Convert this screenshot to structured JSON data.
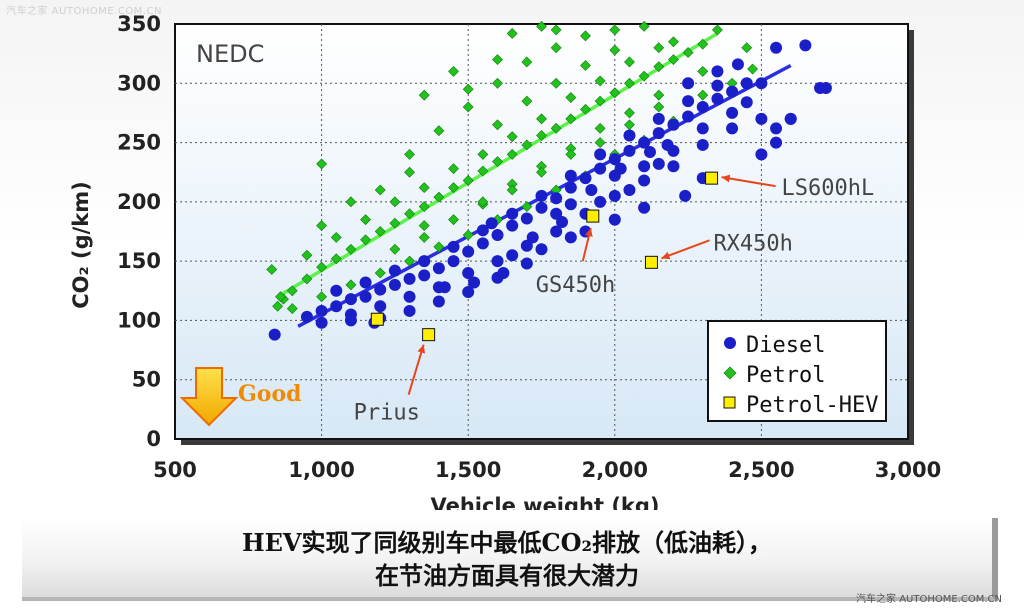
{
  "watermark_top": "汽车之家 AUTOHOME.COM.CN",
  "watermark_bottom": "汽车之家 AUTOHOME.COM.CN",
  "caption": {
    "line1": "HEV实现了同级别车中最低CO₂排放（低油耗），",
    "line2": "在节油方面具有很大潜力"
  },
  "colors": {
    "diesel": "#1b1fc8",
    "petrol": "#22c21c",
    "hev": "#ffee00",
    "good_arrow": "#f5c000",
    "good_text": "#f08a00",
    "annotation_arrow": "#e8451c"
  },
  "chart_data": {
    "type": "scatter",
    "title": "NEDC",
    "xlabel": "Vehicle weight (kg)",
    "ylabel": "CO₂ (g/km)",
    "xlim": [
      500,
      3000
    ],
    "ylim": [
      0,
      350
    ],
    "xticks": [
      "500",
      "1,000",
      "1,500",
      "2,000",
      "2,500",
      "3,000"
    ],
    "yticks": [
      "0",
      "50",
      "100",
      "150",
      "200",
      "250",
      "300",
      "350"
    ],
    "grid": true,
    "legend_position": "bottom-right",
    "good_label": "Good",
    "series": [
      {
        "name": "Diesel",
        "marker": "circle",
        "trend": [
          [
            920,
            95
          ],
          [
            2600,
            315
          ]
        ],
        "points": [
          [
            840,
            88
          ],
          [
            950,
            103
          ],
          [
            1000,
            108
          ],
          [
            1050,
            112
          ],
          [
            1100,
            118
          ],
          [
            1150,
            120
          ],
          [
            1200,
            126
          ],
          [
            1250,
            130
          ],
          [
            1300,
            135
          ],
          [
            1350,
            138
          ],
          [
            1400,
            144
          ],
          [
            1450,
            150
          ],
          [
            1500,
            158
          ],
          [
            1550,
            165
          ],
          [
            1600,
            172
          ],
          [
            1650,
            180
          ],
          [
            1700,
            186
          ],
          [
            1750,
            195
          ],
          [
            1800,
            203
          ],
          [
            1850,
            212
          ],
          [
            1900,
            220
          ],
          [
            1950,
            228
          ],
          [
            2000,
            236
          ],
          [
            2050,
            243
          ],
          [
            2100,
            250
          ],
          [
            2150,
            258
          ],
          [
            2200,
            265
          ],
          [
            2250,
            272
          ],
          [
            2300,
            280
          ],
          [
            2350,
            287
          ],
          [
            2400,
            293
          ],
          [
            2450,
            300
          ],
          [
            1000,
            98
          ],
          [
            1100,
            105
          ],
          [
            1200,
            112
          ],
          [
            1300,
            120
          ],
          [
            1400,
            128
          ],
          [
            1500,
            140
          ],
          [
            1600,
            150
          ],
          [
            1700,
            163
          ],
          [
            1800,
            175
          ],
          [
            1900,
            190
          ],
          [
            2000,
            205
          ],
          [
            2100,
            218
          ],
          [
            2200,
            230
          ],
          [
            2300,
            248
          ],
          [
            2400,
            262
          ],
          [
            1050,
            125
          ],
          [
            1150,
            132
          ],
          [
            1250,
            142
          ],
          [
            1350,
            150
          ],
          [
            1450,
            162
          ],
          [
            1550,
            176
          ],
          [
            1650,
            190
          ],
          [
            1750,
            205
          ],
          [
            1850,
            222
          ],
          [
            1950,
            240
          ],
          [
            2050,
            256
          ],
          [
            2150,
            270
          ],
          [
            2250,
            285
          ],
          [
            2350,
            298
          ],
          [
            2450,
            284
          ],
          [
            2500,
            270
          ],
          [
            2550,
            262
          ],
          [
            2500,
            240
          ],
          [
            2550,
            250
          ],
          [
            2600,
            270
          ],
          [
            2650,
            332
          ],
          [
            2550,
            330
          ],
          [
            2700,
            296
          ],
          [
            2720,
            296
          ],
          [
            2600,
            270
          ],
          [
            2240,
            205
          ],
          [
            1580,
            182
          ],
          [
            1800,
            190
          ],
          [
            1900,
            175
          ],
          [
            2000,
            185
          ],
          [
            2100,
            195
          ],
          [
            2150,
            232
          ],
          [
            2300,
            262
          ],
          [
            1200,
            102
          ],
          [
            1300,
            108
          ],
          [
            1400,
            116
          ],
          [
            1500,
            124
          ],
          [
            1600,
            136
          ],
          [
            1700,
            148
          ],
          [
            1850,
            170
          ],
          [
            1950,
            200
          ],
          [
            2050,
            210
          ],
          [
            2200,
            243
          ],
          [
            2400,
            275
          ],
          [
            2250,
            300
          ],
          [
            2350,
            310
          ],
          [
            2420,
            316
          ],
          [
            1100,
            100
          ],
          [
            1180,
            98
          ],
          [
            1650,
            155
          ],
          [
            1750,
            160
          ],
          [
            1850,
            198
          ],
          [
            2000,
            222
          ],
          [
            2100,
            230
          ],
          [
            2180,
            248
          ],
          [
            2300,
            220
          ],
          [
            2500,
            300
          ],
          [
            1420,
            128
          ],
          [
            1520,
            132
          ],
          [
            1620,
            140
          ],
          [
            1720,
            170
          ],
          [
            1820,
            183
          ],
          [
            1920,
            210
          ],
          [
            2020,
            228
          ],
          [
            2120,
            242
          ]
        ]
      },
      {
        "name": "Petrol",
        "marker": "diamond",
        "trend": [
          [
            850,
            120
          ],
          [
            2350,
            342
          ]
        ],
        "points": [
          [
            830,
            143
          ],
          [
            850,
            112
          ],
          [
            870,
            118
          ],
          [
            900,
            125
          ],
          [
            950,
            135
          ],
          [
            1000,
            145
          ],
          [
            1050,
            152
          ],
          [
            1100,
            160
          ],
          [
            1150,
            168
          ],
          [
            1200,
            175
          ],
          [
            1250,
            182
          ],
          [
            1300,
            190
          ],
          [
            1350,
            196
          ],
          [
            1400,
            204
          ],
          [
            1450,
            212
          ],
          [
            1500,
            218
          ],
          [
            1550,
            226
          ],
          [
            1600,
            234
          ],
          [
            1650,
            240
          ],
          [
            1700,
            248
          ],
          [
            1750,
            256
          ],
          [
            1800,
            262
          ],
          [
            1850,
            270
          ],
          [
            1900,
            278
          ],
          [
            1950,
            285
          ],
          [
            2000,
            292
          ],
          [
            2050,
            300
          ],
          [
            2100,
            306
          ],
          [
            2150,
            314
          ],
          [
            2200,
            320
          ],
          [
            2250,
            326
          ],
          [
            2300,
            333
          ],
          [
            900,
            110
          ],
          [
            1000,
            120
          ],
          [
            1100,
            130
          ],
          [
            1200,
            140
          ],
          [
            1300,
            150
          ],
          [
            1400,
            162
          ],
          [
            1500,
            172
          ],
          [
            1600,
            185
          ],
          [
            1700,
            196
          ],
          [
            1800,
            210
          ],
          [
            1900,
            222
          ],
          [
            2000,
            240
          ],
          [
            2100,
            252
          ],
          [
            2200,
            268
          ],
          [
            950,
            155
          ],
          [
            1050,
            170
          ],
          [
            1150,
            185
          ],
          [
            1250,
            200
          ],
          [
            1350,
            212
          ],
          [
            1450,
            228
          ],
          [
            1550,
            240
          ],
          [
            1650,
            255
          ],
          [
            1750,
            270
          ],
          [
            1850,
            288
          ],
          [
            1950,
            302
          ],
          [
            2050,
            318
          ],
          [
            2150,
            330
          ],
          [
            1000,
            232
          ],
          [
            860,
            120
          ],
          [
            1300,
            240
          ],
          [
            1400,
            260
          ],
          [
            1500,
            280
          ],
          [
            1600,
            300
          ],
          [
            1700,
            318
          ],
          [
            1800,
            330
          ],
          [
            1900,
            340
          ],
          [
            2000,
            345
          ],
          [
            2100,
            348
          ],
          [
            1450,
            310
          ],
          [
            1650,
            342
          ],
          [
            1750,
            348
          ],
          [
            2200,
            335
          ],
          [
            2400,
            300
          ],
          [
            2450,
            330
          ],
          [
            2470,
            312
          ],
          [
            2300,
            290
          ],
          [
            1200,
            210
          ],
          [
            1300,
            225
          ],
          [
            1100,
            200
          ],
          [
            1000,
            180
          ],
          [
            1350,
            170
          ],
          [
            1450,
            185
          ],
          [
            1550,
            198
          ],
          [
            1650,
            215
          ],
          [
            1750,
            230
          ],
          [
            1850,
            245
          ],
          [
            1950,
            262
          ],
          [
            2050,
            275
          ],
          [
            2150,
            290
          ],
          [
            1250,
            160
          ],
          [
            1350,
            180
          ],
          [
            1550,
            200
          ],
          [
            1650,
            210
          ],
          [
            1750,
            225
          ],
          [
            1850,
            240
          ],
          [
            1950,
            250
          ],
          [
            2050,
            265
          ],
          [
            2150,
            280
          ],
          [
            2250,
            300
          ],
          [
            1600,
            265
          ],
          [
            1700,
            285
          ],
          [
            1800,
            300
          ],
          [
            1900,
            315
          ],
          [
            2000,
            328
          ],
          [
            1350,
            290
          ],
          [
            1500,
            295
          ],
          [
            1600,
            320
          ],
          [
            1800,
            345
          ],
          [
            2300,
            310
          ],
          [
            2350,
            345
          ]
        ]
      },
      {
        "name": "Petrol-HEV",
        "marker": "square",
        "points": [
          [
            1190,
            101
          ],
          [
            1365,
            88
          ],
          [
            1925,
            188
          ],
          [
            2125,
            149
          ],
          [
            2330,
            220
          ]
        ]
      }
    ],
    "annotations": [
      {
        "text": "Prius",
        "point": [
          1365,
          88
        ]
      },
      {
        "text": "GS450h",
        "point": [
          1925,
          188
        ]
      },
      {
        "text": "RX450h",
        "point": [
          2125,
          149
        ]
      },
      {
        "text": "LS600hL",
        "point": [
          2330,
          220
        ]
      }
    ]
  }
}
